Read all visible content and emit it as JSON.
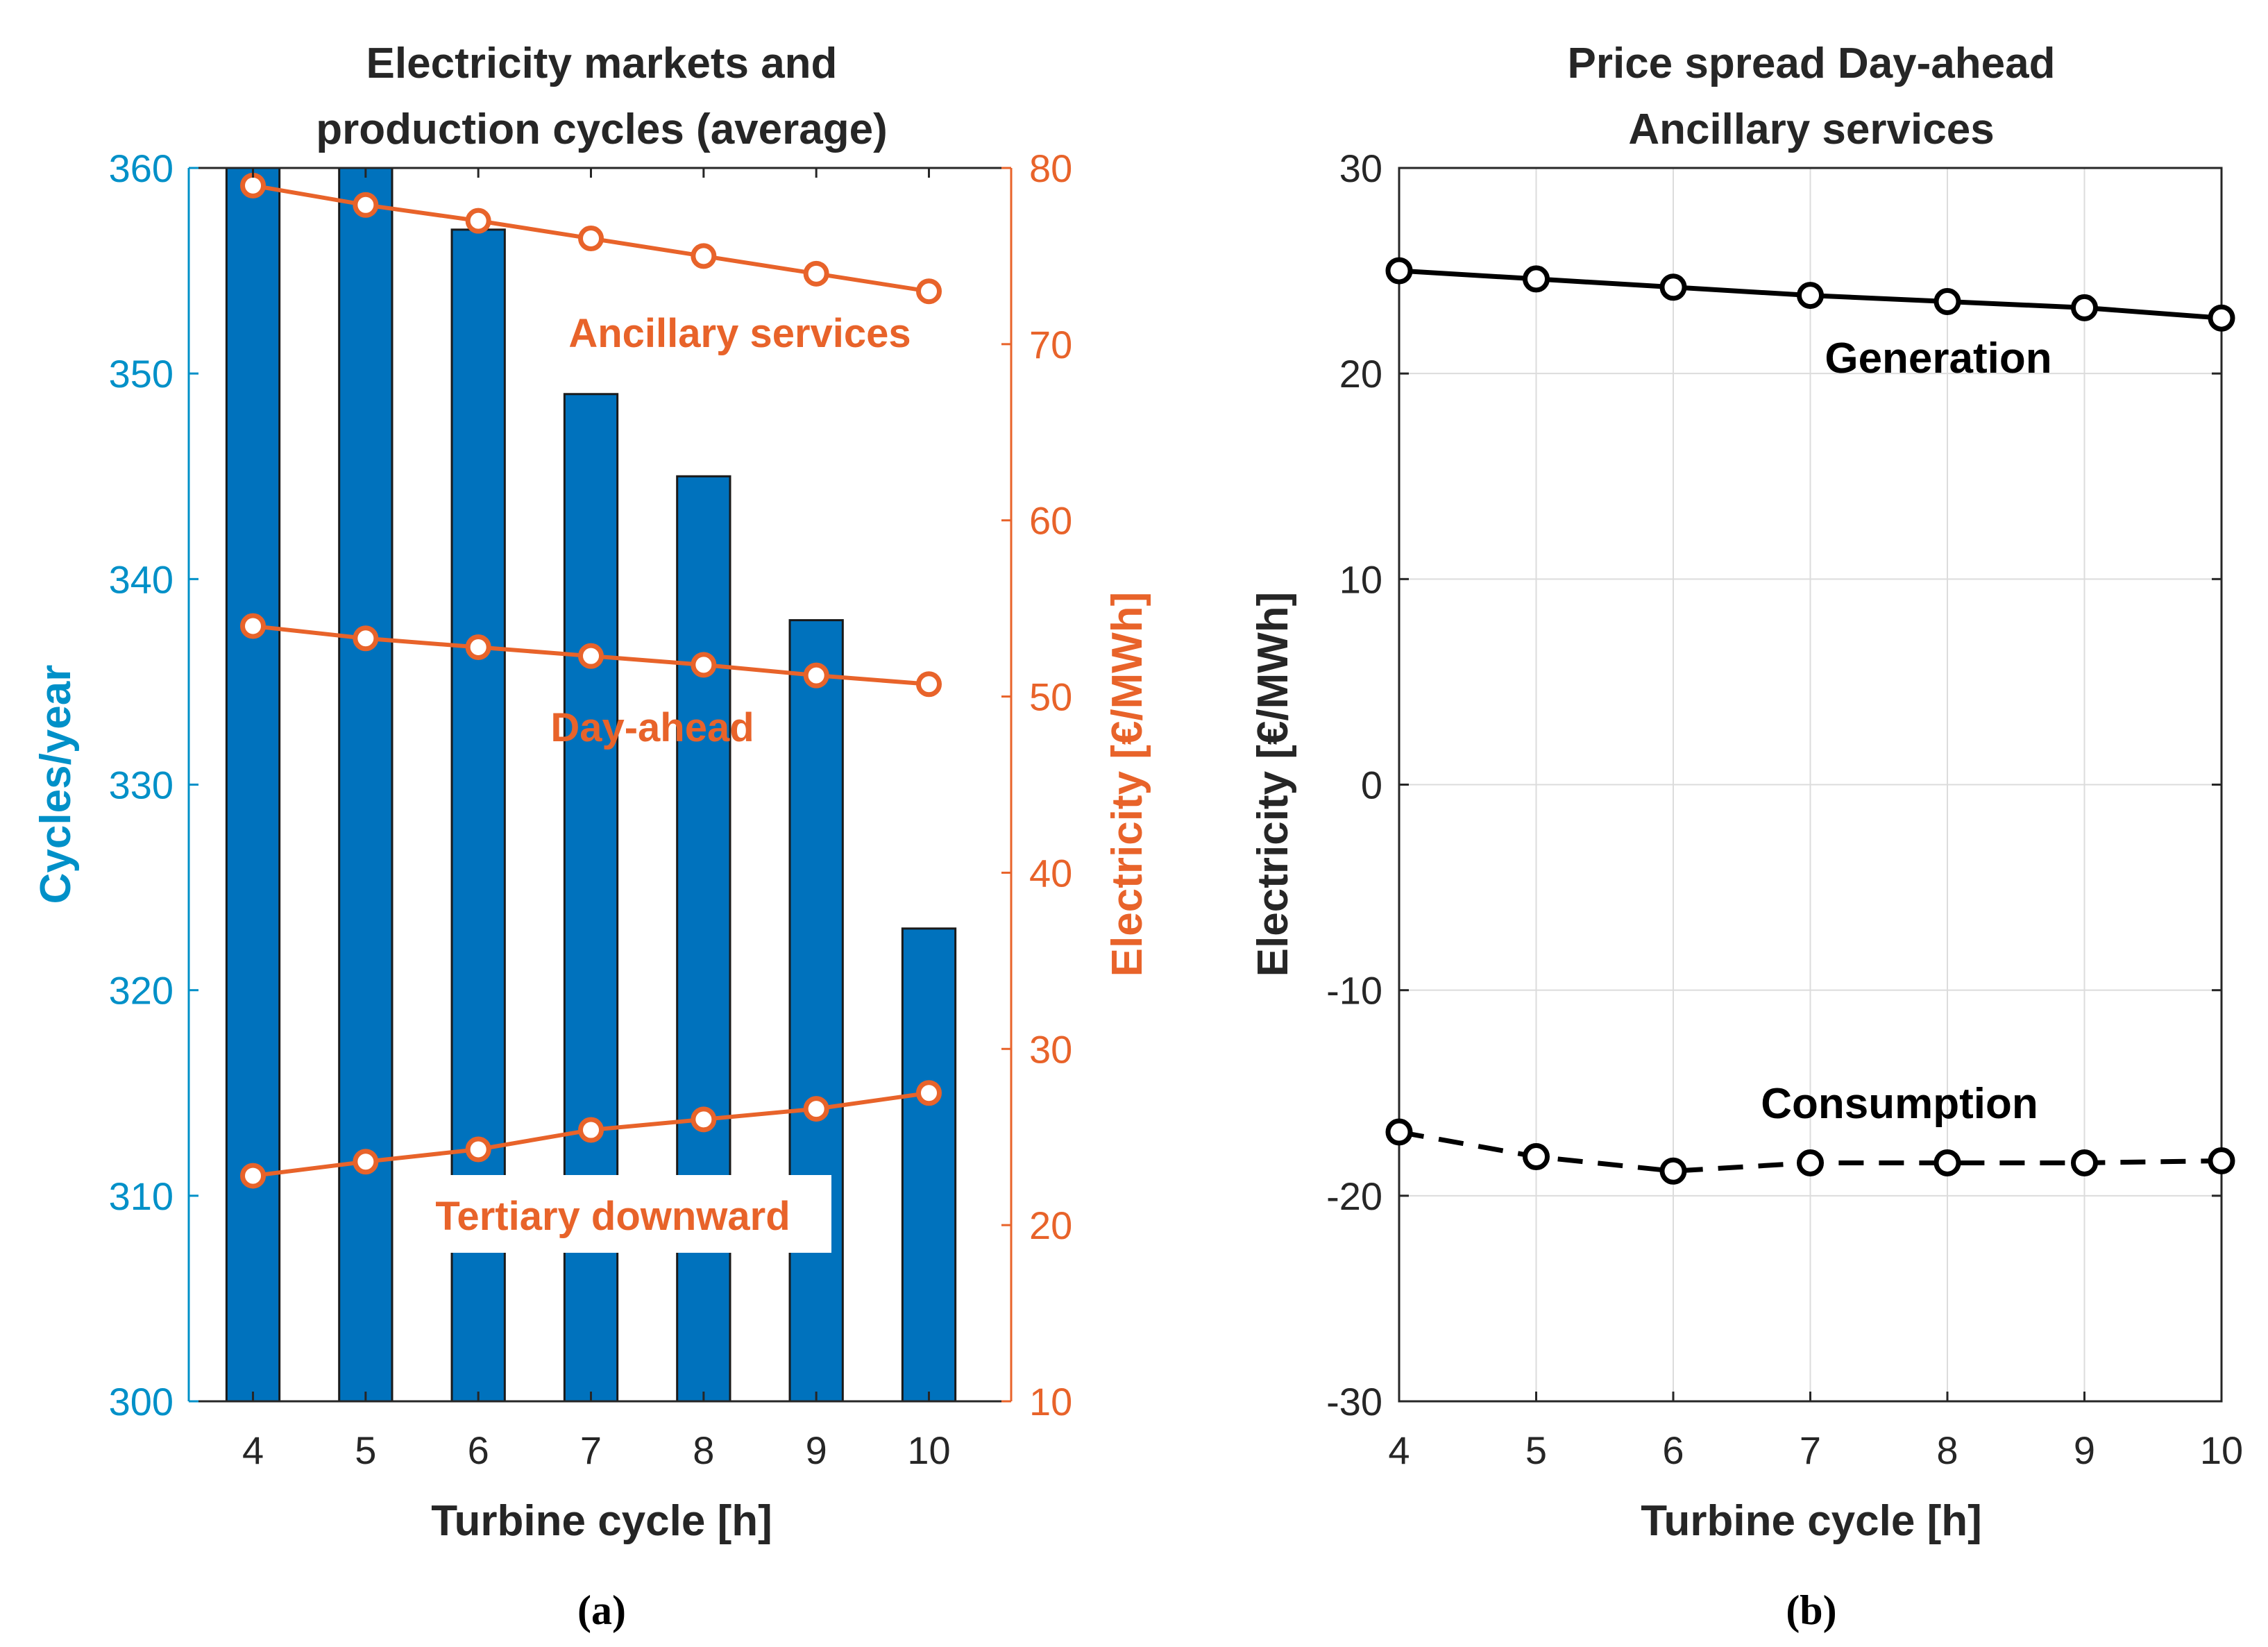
{
  "chart_data": [
    {
      "type": "bar",
      "panel_label": "(a)",
      "title_lines": [
        "Electricity markets and",
        "production cycles (average)"
      ],
      "xlabel": "Turbine cycle [h]",
      "ylabel_left": "Cycles/year",
      "ylabel_right": "Electricity [€/MWh]",
      "categories": [
        "4",
        "5",
        "6",
        "7",
        "8",
        "9",
        "10"
      ],
      "ylim_left": [
        300,
        360
      ],
      "yticks_left": [
        "300",
        "310",
        "320",
        "330",
        "340",
        "350",
        "360"
      ],
      "ylim_right": [
        10,
        80
      ],
      "yticks_right": [
        "10",
        "20",
        "30",
        "40",
        "50",
        "60",
        "70",
        "80"
      ],
      "bars": {
        "name": "Cycles/year",
        "values": [
          360,
          360,
          357,
          349,
          345,
          338,
          323
        ],
        "color": "#0072bd"
      },
      "series": [
        {
          "name": "Ancillary services",
          "axis": "right",
          "values": [
            79,
            77.9,
            77,
            76,
            75,
            74,
            73
          ],
          "color": "#e8632a",
          "label": "Ancillary services"
        },
        {
          "name": "Day-ahead",
          "axis": "right",
          "values": [
            54,
            53.3,
            52.8,
            52.3,
            51.8,
            51.2,
            50.7
          ],
          "color": "#e8632a",
          "label": "Day-ahead"
        },
        {
          "name": "Tertiary downward",
          "axis": "right",
          "values": [
            22.8,
            23.6,
            24.3,
            25.4,
            26,
            26.6,
            27.5
          ],
          "color": "#e8632a",
          "label": "Tertiary downward"
        }
      ],
      "left_axis_color": "#0090c8",
      "right_axis_color": "#e8632a"
    },
    {
      "type": "line",
      "panel_label": "(b)",
      "title_lines": [
        "Price spread Day-ahead",
        "Ancillary services"
      ],
      "xlabel": "Turbine cycle [h]",
      "ylabel": "Electricity [€/MWh]",
      "x": [
        4,
        5,
        6,
        7,
        8,
        9,
        10
      ],
      "xticks": [
        "4",
        "5",
        "6",
        "7",
        "8",
        "9",
        "10"
      ],
      "ylim": [
        -30,
        30
      ],
      "yticks": [
        "-30",
        "-20",
        "-10",
        "0",
        "10",
        "20",
        "30"
      ],
      "grid": true,
      "series": [
        {
          "name": "Generation",
          "values": [
            25,
            24.6,
            24.2,
            23.8,
            23.5,
            23.2,
            22.7
          ],
          "color": "#000000",
          "style": "solid",
          "label": "Generation"
        },
        {
          "name": "Consumption",
          "values": [
            -16.9,
            -18.1,
            -18.8,
            -18.4,
            -18.4,
            -18.4,
            -18.3
          ],
          "color": "#000000",
          "style": "dashed",
          "label": "Consumption"
        }
      ]
    }
  ]
}
